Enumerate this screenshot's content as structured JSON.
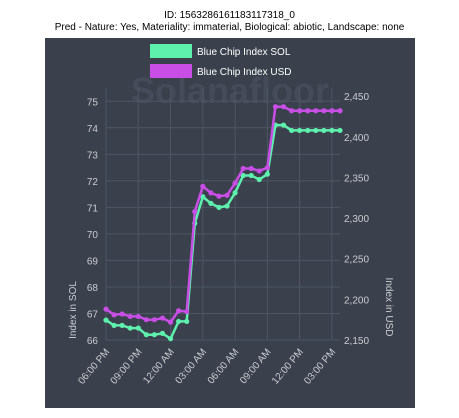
{
  "header": {
    "id_line": "ID: 1563286161183117318_0",
    "pred_line": "Pred - Nature: Yes, Materiality: immaterial, Biological: abiotic, Landscape: none"
  },
  "chart": {
    "watermark": "Solanafloor",
    "background_color": "#3a404c",
    "grid_color": "#4f5663",
    "text_color": "#c9ccd2"
  },
  "chart_data": {
    "type": "line",
    "title": "",
    "legend_position": "top-center",
    "grid": true,
    "x": [
      "06:00 PM",
      "",
      "09:00 PM",
      "",
      "12:00 AM",
      "",
      "03:00 AM",
      "",
      "06:00 AM",
      "",
      "09:00 AM",
      "",
      "12:00 PM",
      "",
      "03:00 PM",
      ""
    ],
    "x_points": [
      0,
      0.5,
      1,
      1.5,
      2,
      2.5,
      3,
      3.5,
      4,
      4.5,
      5,
      5.5,
      6,
      6.5,
      7,
      7.5,
      8,
      8.5,
      9,
      9.5,
      10,
      10.5,
      11,
      11.5,
      12,
      12.5,
      13,
      13.5,
      14,
      14.5
    ],
    "xtick_labels": [
      "06:00 PM",
      "09:00 PM",
      "12:00 AM",
      "03:00 AM",
      "06:00 AM",
      "09:00 AM",
      "12:00 PM",
      "03:00 PM"
    ],
    "ylabel_left": "Index in SOL",
    "ylabel_right": "Index in USD",
    "ylim_left": [
      66,
      75.5
    ],
    "ylim_right": [
      2150,
      2460
    ],
    "yticks_left": [
      66,
      67,
      68,
      69,
      70,
      71,
      72,
      73,
      74,
      75
    ],
    "yticks_right": [
      "2,150",
      "2,200",
      "2,250",
      "2,300",
      "2,350",
      "2,400",
      "2,450"
    ],
    "yticks_right_values": [
      2150,
      2200,
      2250,
      2300,
      2350,
      2400,
      2450
    ],
    "series": [
      {
        "name": "Blue Chip Index SOL",
        "axis": "left",
        "color": "#5ef0ad",
        "x": [
          0,
          0.5,
          1,
          1.5,
          2,
          2.5,
          3,
          3.5,
          4,
          4.5,
          5,
          5.5,
          6,
          6.5,
          7,
          7.5,
          8,
          8.5,
          9,
          9.5,
          10,
          10.5,
          11,
          11.5,
          12,
          12.5,
          13,
          13.5,
          14,
          14.5
        ],
        "values": [
          66.75,
          66.55,
          66.55,
          66.45,
          66.45,
          66.2,
          66.2,
          66.25,
          66.05,
          66.7,
          66.7,
          70.4,
          71.4,
          71.15,
          71.0,
          71.05,
          71.55,
          72.2,
          72.2,
          72.05,
          72.25,
          74.1,
          74.1,
          73.9,
          73.9,
          73.9,
          73.9,
          73.9,
          73.9,
          73.9
        ]
      },
      {
        "name": "Blue Chip Index USD",
        "axis": "right",
        "color": "#c84ee6",
        "x": [
          0,
          0.5,
          1,
          1.5,
          2,
          2.5,
          3,
          3.5,
          4,
          4.5,
          5,
          5.5,
          6,
          6.5,
          7,
          7.5,
          8,
          8.5,
          9,
          9.5,
          10,
          10.5,
          11,
          11.5,
          12,
          12.5,
          13,
          13.5,
          14,
          14.5
        ],
        "values": [
          2188,
          2181,
          2182,
          2179,
          2179,
          2175,
          2175,
          2177,
          2172,
          2186,
          2185,
          2308,
          2339,
          2331,
          2327,
          2328,
          2343,
          2361,
          2361,
          2358,
          2362,
          2437,
          2437,
          2432,
          2432,
          2432,
          2432,
          2432,
          2432,
          2432
        ]
      }
    ]
  }
}
